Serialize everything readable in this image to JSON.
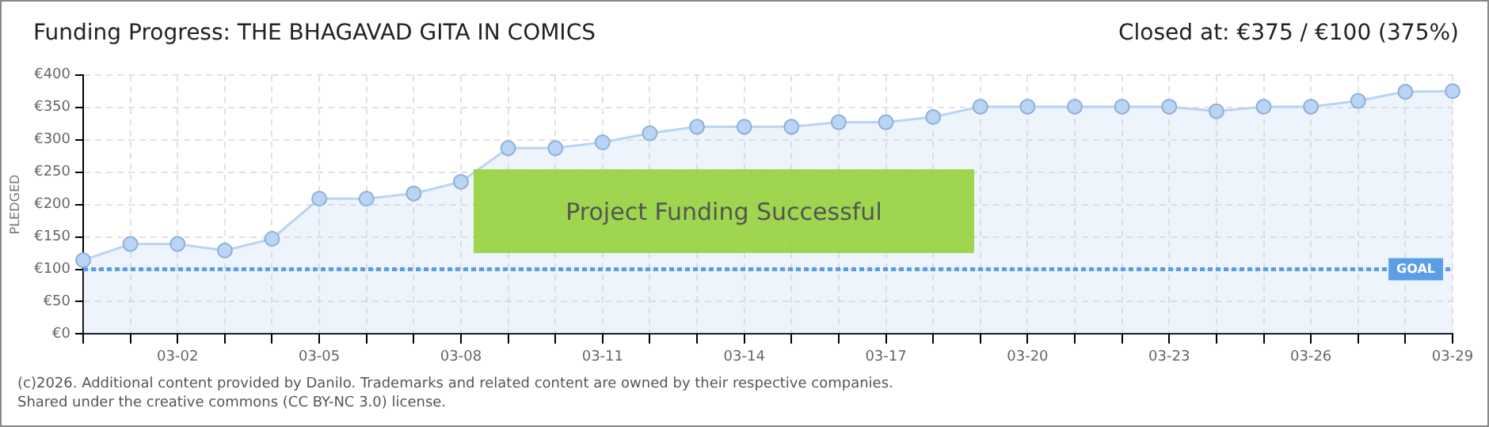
{
  "chart_data": {
    "type": "area",
    "title": "Funding Progress: THE BHAGAVAD GITA IN COMICS",
    "subtitle": "Closed at:  €375 /  €100 (375%)",
    "ylabel": "PLEDGED",
    "categories": [
      null,
      null,
      "03-02",
      null,
      null,
      "03-05",
      null,
      null,
      "03-08",
      null,
      null,
      "03-11",
      null,
      null,
      "03-14",
      null,
      null,
      "03-17",
      null,
      null,
      "03-20",
      null,
      null,
      "03-23",
      null,
      null,
      "03-26",
      null,
      null,
      "03-29"
    ],
    "series": [
      {
        "color": "#b9d4f4",
        "values": [
          114,
          139,
          139,
          129,
          147,
          209,
          209,
          217,
          235,
          287,
          287,
          296,
          310,
          320,
          320,
          320,
          327,
          327,
          335,
          351,
          351,
          351,
          351,
          351,
          344,
          351,
          351,
          360,
          374,
          375
        ]
      }
    ],
    "ylim": [
      0,
      400
    ],
    "yticks": [
      {
        "value": 0,
        "label": "€0"
      },
      {
        "value": 50,
        "label": "€50"
      },
      {
        "value": 100,
        "label": "€100"
      },
      {
        "value": 150,
        "label": "€150"
      },
      {
        "value": 200,
        "label": "€200"
      },
      {
        "value": 250,
        "label": "€250"
      },
      {
        "value": 300,
        "label": "€300"
      },
      {
        "value": 350,
        "label": "€350"
      },
      {
        "value": 400,
        "label": "€400"
      }
    ],
    "ref_lines": [
      {
        "axis": "y",
        "value": 100,
        "label": "GOAL",
        "color": "#5b9ee6",
        "line_style": "dotted"
      }
    ],
    "annotations": [
      "Project Funding Successful",
      "(c)2026. Additional content provided by Danilo. Trademarks and related content are owned by their respective companies.",
      "Shared under the creative commons (CC BY-NC 3.0) license."
    ],
    "grid": true,
    "legend": false,
    "marker": "circle"
  }
}
